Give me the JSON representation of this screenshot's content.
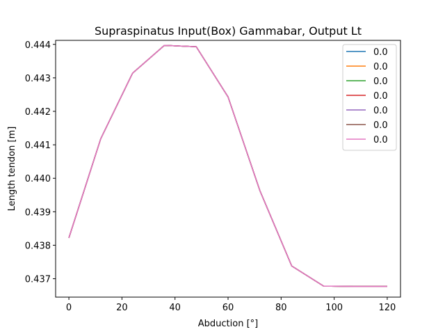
{
  "chart_data": {
    "type": "line",
    "title": "Supraspinatus Input(Box) Gammabar, Output Lt",
    "xlabel": "Abduction [°]",
    "ylabel": "Length tendon [m]",
    "xlim": [
      -5,
      125
    ],
    "ylim": [
      0.43645,
      0.44412
    ],
    "xticks": [
      0,
      20,
      40,
      60,
      80,
      100,
      120
    ],
    "yticks": [
      0.437,
      0.438,
      0.439,
      0.44,
      0.441,
      0.442,
      0.443,
      0.444
    ],
    "ytick_labels": [
      "0.437",
      "0.438",
      "0.439",
      "0.440",
      "0.441",
      "0.442",
      "0.443",
      "0.444"
    ],
    "legend_position": "top-right",
    "grid": false,
    "x": [
      0,
      12,
      24,
      36,
      48,
      60,
      72,
      84,
      96,
      108,
      120
    ],
    "series": [
      {
        "name": "0.0",
        "color": "#1f77b4",
        "values": [
          0.43822,
          0.44118,
          0.44314,
          0.44397,
          0.44393,
          0.44243,
          0.43963,
          0.43738,
          0.43678,
          0.43677,
          0.43677
        ]
      },
      {
        "name": "0.0",
        "color": "#ff7f0e",
        "values": [
          0.43822,
          0.44118,
          0.44314,
          0.44397,
          0.44393,
          0.44243,
          0.43963,
          0.43738,
          0.43678,
          0.43677,
          0.43677
        ]
      },
      {
        "name": "0.0",
        "color": "#2ca02c",
        "values": [
          0.43822,
          0.44118,
          0.44314,
          0.44397,
          0.44393,
          0.44243,
          0.43963,
          0.43738,
          0.43678,
          0.43677,
          0.43677
        ]
      },
      {
        "name": "0.0",
        "color": "#d62728",
        "values": [
          0.43822,
          0.44118,
          0.44314,
          0.44397,
          0.44393,
          0.44243,
          0.43963,
          0.43738,
          0.43678,
          0.43677,
          0.43677
        ]
      },
      {
        "name": "0.0",
        "color": "#9467bd",
        "values": [
          0.43822,
          0.44118,
          0.44314,
          0.44397,
          0.44393,
          0.44243,
          0.43963,
          0.43738,
          0.43678,
          0.43677,
          0.43677
        ]
      },
      {
        "name": "0.0",
        "color": "#8c564b",
        "values": [
          0.43822,
          0.44118,
          0.44314,
          0.44397,
          0.44393,
          0.44243,
          0.43963,
          0.43738,
          0.43678,
          0.43677,
          0.43677
        ]
      },
      {
        "name": "0.0",
        "color": "#e377c2",
        "values": [
          0.43822,
          0.44118,
          0.44314,
          0.44397,
          0.44393,
          0.44243,
          0.43963,
          0.43738,
          0.43678,
          0.43677,
          0.43677
        ]
      }
    ]
  }
}
